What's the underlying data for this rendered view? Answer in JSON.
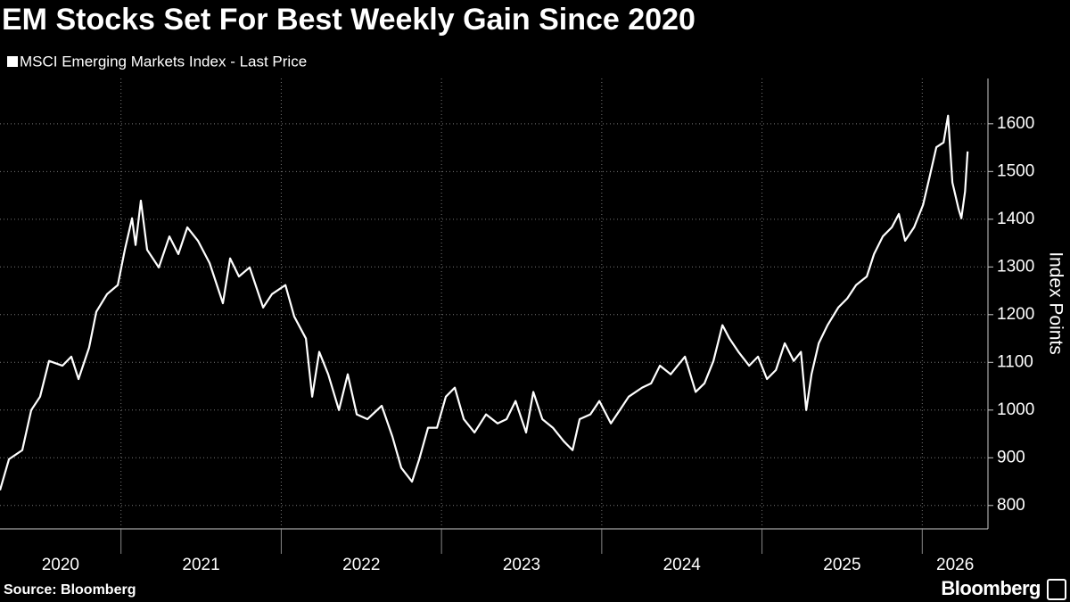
{
  "chart_data": {
    "type": "line",
    "title": "EM Stocks Set For Best Weekly Gain Since 2020",
    "ylabel": "Index Points",
    "source": "Source: Bloomberg",
    "brand": "Bloomberg",
    "categories": [
      "2020",
      "2021",
      "2022",
      "2023",
      "2024",
      "2025",
      "2026"
    ],
    "xlim": [
      2020.245,
      2026.41
    ],
    "xticks": [
      2021,
      2022,
      2023,
      2024,
      2025,
      2026
    ],
    "ylim": [
      751,
      1695
    ],
    "yticks": [
      800,
      900,
      1000,
      1100,
      1200,
      1300,
      1400,
      1500,
      1600
    ],
    "grid": true,
    "x": [
      2020.245,
      2020.301,
      2020.384,
      2020.44,
      2020.495,
      2020.551,
      2020.635,
      2020.69,
      2020.735,
      2020.801,
      2020.846,
      2020.913,
      2020.98,
      2021.024,
      2021.069,
      2021.091,
      2021.124,
      2021.163,
      2021.236,
      2021.302,
      2021.358,
      2021.414,
      2021.48,
      2021.553,
      2021.636,
      2021.681,
      2021.736,
      2021.803,
      2021.887,
      2021.942,
      2022.026,
      2022.081,
      2022.154,
      2022.193,
      2022.237,
      2022.293,
      2022.36,
      2022.415,
      2022.471,
      2022.538,
      2022.627,
      2022.694,
      2022.749,
      2022.816,
      2022.861,
      2022.916,
      2022.972,
      2023.027,
      2023.083,
      2023.139,
      2023.206,
      2023.278,
      2023.35,
      2023.406,
      2023.462,
      2023.528,
      2023.573,
      2023.629,
      2023.695,
      2023.762,
      2023.818,
      2023.862,
      2023.929,
      2023.985,
      2024.057,
      2024.113,
      2024.168,
      2024.252,
      2024.308,
      2024.363,
      2024.43,
      2024.519,
      2024.586,
      2024.641,
      2024.697,
      2024.753,
      2024.797,
      2024.853,
      2024.92,
      2024.975,
      2025.031,
      2025.087,
      2025.142,
      2025.198,
      2025.243,
      2025.276,
      2025.309,
      2025.354,
      2025.409,
      2025.476,
      2025.532,
      2025.587,
      2025.654,
      2025.699,
      2025.754,
      2025.81,
      2025.854,
      2025.893,
      2025.949,
      2026.005,
      2026.044,
      2026.088,
      2026.133,
      2026.161,
      2026.188,
      2026.227,
      2026.244,
      2026.267,
      2026.283
    ],
    "series": [
      {
        "name": "MSCI Emerging Markets Index - Last Price",
        "color": "#ffffff",
        "values": [
          832,
          897,
          916,
          1000,
          1028,
          1103,
          1093,
          1112,
          1065,
          1131,
          1206,
          1243,
          1262,
          1336,
          1402,
          1346,
          1439,
          1336,
          1299,
          1364,
          1327,
          1383,
          1355,
          1308,
          1224,
          1318,
          1280,
          1299,
          1215,
          1243,
          1262,
          1196,
          1150,
          1028,
          1122,
          1075,
          1000,
          1075,
          991,
          981,
          1009,
          944,
          879,
          850,
          897,
          963,
          963,
          1028,
          1047,
          981,
          953,
          991,
          972,
          981,
          1019,
          953,
          1038,
          981,
          963,
          935,
          916,
          981,
          991,
          1019,
          972,
          1000,
          1028,
          1047,
          1056,
          1093,
          1075,
          1112,
          1038,
          1056,
          1103,
          1178,
          1150,
          1122,
          1093,
          1112,
          1065,
          1084,
          1140,
          1103,
          1122,
          1000,
          1075,
          1140,
          1178,
          1215,
          1234,
          1262,
          1280,
          1327,
          1364,
          1383,
          1411,
          1355,
          1383,
          1430,
          1486,
          1551,
          1561,
          1617,
          1477,
          1421,
          1402,
          1458,
          1542
        ]
      }
    ]
  }
}
